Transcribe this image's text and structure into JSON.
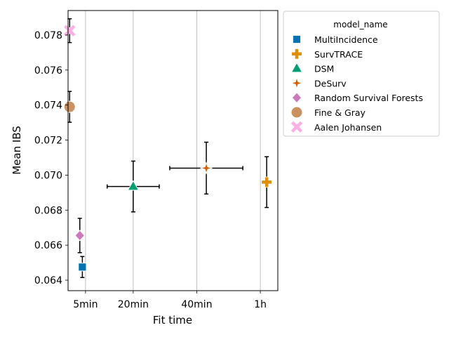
{
  "chart_data": {
    "type": "scatter",
    "xlabel": "Fit time",
    "ylabel": "Mean IBS",
    "x_ticks": [
      "5min",
      "20min",
      "40min",
      "1h"
    ],
    "x_tick_values_min": [
      5,
      20,
      40,
      60
    ],
    "y_ticks": [
      "0.064",
      "0.066",
      "0.068",
      "0.070",
      "0.072",
      "0.074",
      "0.076",
      "0.078"
    ],
    "xlim_min": [
      -0.5,
      65.5
    ],
    "ylim": [
      0.0634,
      0.0794
    ],
    "grid": "vertical lines at x ticks",
    "legend": {
      "title": "model_name",
      "placement": "outside right, top"
    },
    "series": [
      {
        "name": "MultiIncidence",
        "marker": "square",
        "color": "#0173b2",
        "x_min": 4.0,
        "x_err_min": 0,
        "y": 0.06475,
        "y_err": 0.0006
      },
      {
        "name": "SurvTRACE",
        "marker": "plus",
        "color": "#de8f05",
        "x_min": 62.0,
        "x_err_min": 0,
        "y": 0.0696,
        "y_err": 0.00145
      },
      {
        "name": "DSM",
        "marker": "triangle",
        "color": "#029e73",
        "x_min": 20.0,
        "x_err_min": 8.2,
        "y": 0.06935,
        "y_err": 0.00145
      },
      {
        "name": "DeSurv",
        "marker": "star",
        "color": "#d55e00",
        "x_min": 43.0,
        "x_err_min": 11.5,
        "y": 0.0704,
        "y_err": 0.00148
      },
      {
        "name": "Random Survival Forests",
        "marker": "diamond",
        "color": "#cc78bc",
        "x_min": 3.2,
        "x_err_min": 0,
        "y": 0.06655,
        "y_err": 0.00098
      },
      {
        "name": "Fine & Gray",
        "marker": "circle",
        "color": "#ca9161",
        "x_min": 0.0,
        "x_err_min": 0,
        "y": 0.0739,
        "y_err": 0.00088
      },
      {
        "name": "Aalen Johansen",
        "marker": "x",
        "color": "#fbafe4",
        "x_min": 0.0,
        "x_err_min": 0,
        "y": 0.07825,
        "y_err": 0.00068
      }
    ]
  }
}
